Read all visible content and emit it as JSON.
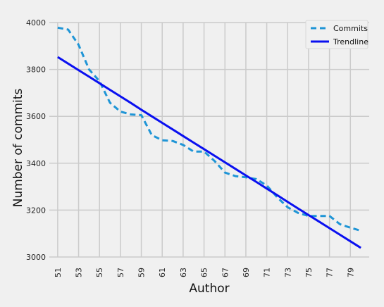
{
  "chart_data": {
    "type": "line",
    "title": "",
    "xlabel": "Author",
    "ylabel": "Number of commits",
    "x": [
      51,
      52,
      53,
      54,
      55,
      56,
      57,
      58,
      59,
      60,
      61,
      62,
      63,
      64,
      65,
      66,
      67,
      68,
      69,
      70,
      71,
      72,
      73,
      74,
      75,
      76,
      77,
      78,
      79,
      80
    ],
    "x_ticks": [
      51,
      53,
      55,
      57,
      59,
      61,
      63,
      65,
      67,
      69,
      71,
      73,
      75,
      77,
      79
    ],
    "y_ticks": [
      3000,
      3200,
      3400,
      3600,
      3800,
      4000
    ],
    "xlim": [
      50.2,
      80.8
    ],
    "ylim": [
      3000,
      4000
    ],
    "grid": true,
    "legend_position": "top-right",
    "series": [
      {
        "name": "Commits",
        "style": "dashed",
        "color": "#1f95d6",
        "values": [
          3978,
          3970,
          3905,
          3800,
          3750,
          3658,
          3620,
          3608,
          3605,
          3520,
          3498,
          3495,
          3478,
          3450,
          3450,
          3410,
          3360,
          3345,
          3340,
          3332,
          3305,
          3255,
          3212,
          3188,
          3175,
          3175,
          3175,
          3140,
          3125,
          3112
        ]
      },
      {
        "name": "Trendline",
        "style": "solid",
        "color": "#0a10f0",
        "values": [
          3853,
          3825,
          3797,
          3769,
          3741,
          3713,
          3685,
          3657,
          3628,
          3600,
          3572,
          3544,
          3516,
          3488,
          3460,
          3432,
          3404,
          3376,
          3348,
          3320,
          3292,
          3264,
          3235,
          3207,
          3179,
          3151,
          3123,
          3095,
          3067,
          3039
        ]
      }
    ]
  }
}
